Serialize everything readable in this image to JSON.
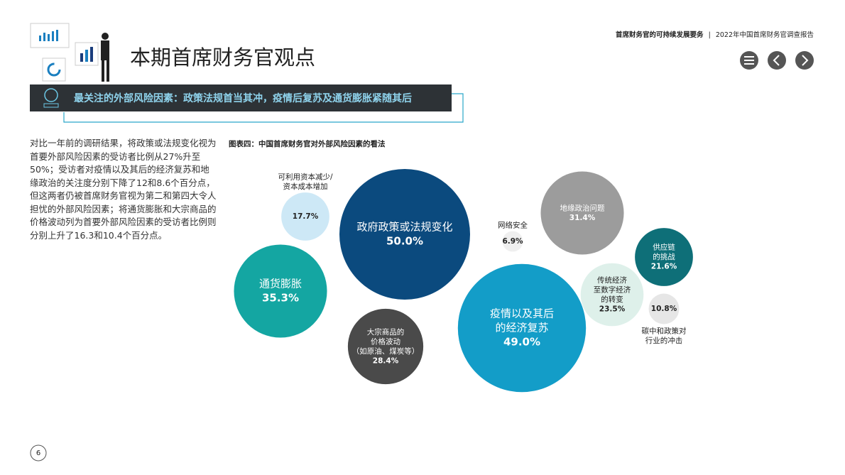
{
  "header": {
    "report_section": "首席财务官的可持续发展要务",
    "separator": "|",
    "report_title": "2022年中国首席财务官调查报告"
  },
  "title": "本期首席财务官观点",
  "banner": "最关注的外部风险因素：政策法规首当其冲，疫情后复苏及通货膨胀紧随其后",
  "body_text": "对比一年前的调研结果，将政策或法规变化视为首要外部风险因素的受访者比例从27%升至50%；受访者对疫情以及其后的经济复苏和地缘政治的关注度分别下降了12和8.6个百分点，但这两者仍被首席财务官视为第二和第四大令人担忧的外部风险因素；将通货膨胀和大宗商品的价格波动列为首要外部风险因素的受访者比例则分别上升了16.3和10.4个百分点。",
  "page_number": "6",
  "chart_data": {
    "type": "bubble",
    "title": "图表四：中国首席财务官对外部风险因素的看法",
    "labels": [
      [
        "政府政策或法规变化"
      ],
      [
        "疫情以及其后",
        "的经济复苏"
      ],
      [
        "通货膨胀"
      ],
      [
        "地缘政治问题"
      ],
      [
        "大宗商品的",
        "价格波动",
        "（如原油、煤炭等）"
      ],
      [
        "传统经济",
        "至数字经济",
        "的转变"
      ],
      [
        "供应链",
        "的挑战"
      ],
      [
        "可利用资本减少/",
        "资本成本增加"
      ],
      [
        "碳中和政策对",
        "行业的冲击"
      ],
      [
        "网络安全"
      ]
    ],
    "values": [
      50.0,
      49.0,
      35.3,
      31.4,
      28.4,
      23.5,
      21.6,
      17.7,
      10.8,
      6.9
    ],
    "value_labels": [
      "50.0%",
      "49.0%",
      "35.3%",
      "31.4%",
      "28.4%",
      "23.5%",
      "21.6%",
      "17.7%",
      "10.8%",
      "6.9%"
    ],
    "colors": [
      "#0b4a7e",
      "#139dc8",
      "#14a6a2",
      "#9c9c9c",
      "#4a4a4a",
      "#def0ea",
      "#0e6f78",
      "#cde8f6",
      "#e6e6e6",
      "#efefef"
    ]
  }
}
